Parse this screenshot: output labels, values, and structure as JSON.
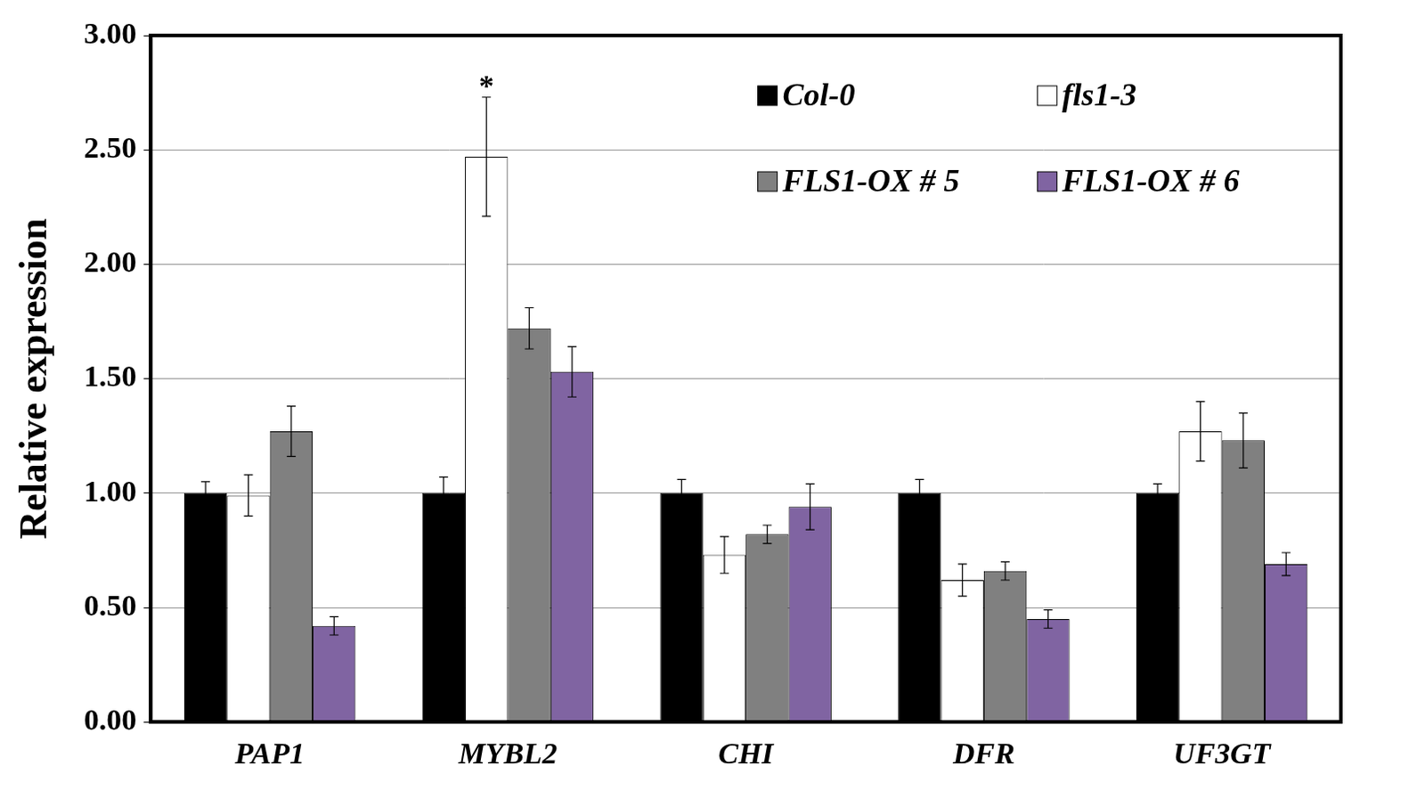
{
  "chart_data": {
    "type": "bar",
    "y_label": "Relative expression",
    "categories": [
      "PAP1",
      "MYBL2",
      "CHI",
      "DFR",
      "UF3GT"
    ],
    "series": [
      {
        "name": "Col-0",
        "color": "#000000",
        "values": [
          1.0,
          1.0,
          1.0,
          1.0,
          1.0
        ],
        "errors": [
          0.05,
          0.07,
          0.06,
          0.06,
          0.04
        ]
      },
      {
        "name": "fls1-3",
        "color": "#ffffff",
        "values": [
          0.99,
          2.47,
          0.73,
          0.62,
          1.27
        ],
        "errors": [
          0.09,
          0.26,
          0.08,
          0.07,
          0.13
        ]
      },
      {
        "name": "FLS1-OX # 5",
        "color": "#808080",
        "values": [
          1.27,
          1.72,
          0.82,
          0.66,
          1.23
        ],
        "errors": [
          0.11,
          0.09,
          0.04,
          0.04,
          0.12
        ]
      },
      {
        "name": "FLS1-OX # 6",
        "color": "#8064a2",
        "values": [
          0.42,
          1.53,
          0.94,
          0.45,
          0.69
        ],
        "errors": [
          0.04,
          0.11,
          0.1,
          0.04,
          0.05
        ]
      }
    ],
    "ylim": [
      0,
      3
    ],
    "yticks": [
      {
        "value": 0,
        "label": "0.00"
      },
      {
        "value": 0.5,
        "label": "0.50"
      },
      {
        "value": 1,
        "label": "1.00"
      },
      {
        "value": 1.5,
        "label": "1.50"
      },
      {
        "value": 2,
        "label": "2.00"
      },
      {
        "value": 2.5,
        "label": "2.50"
      },
      {
        "value": 3,
        "label": "3.00"
      }
    ],
    "grid": true,
    "legend": "upper right",
    "annotations": [
      {
        "text": "*",
        "category": "MYBL2",
        "series": "fls1-3"
      }
    ]
  }
}
